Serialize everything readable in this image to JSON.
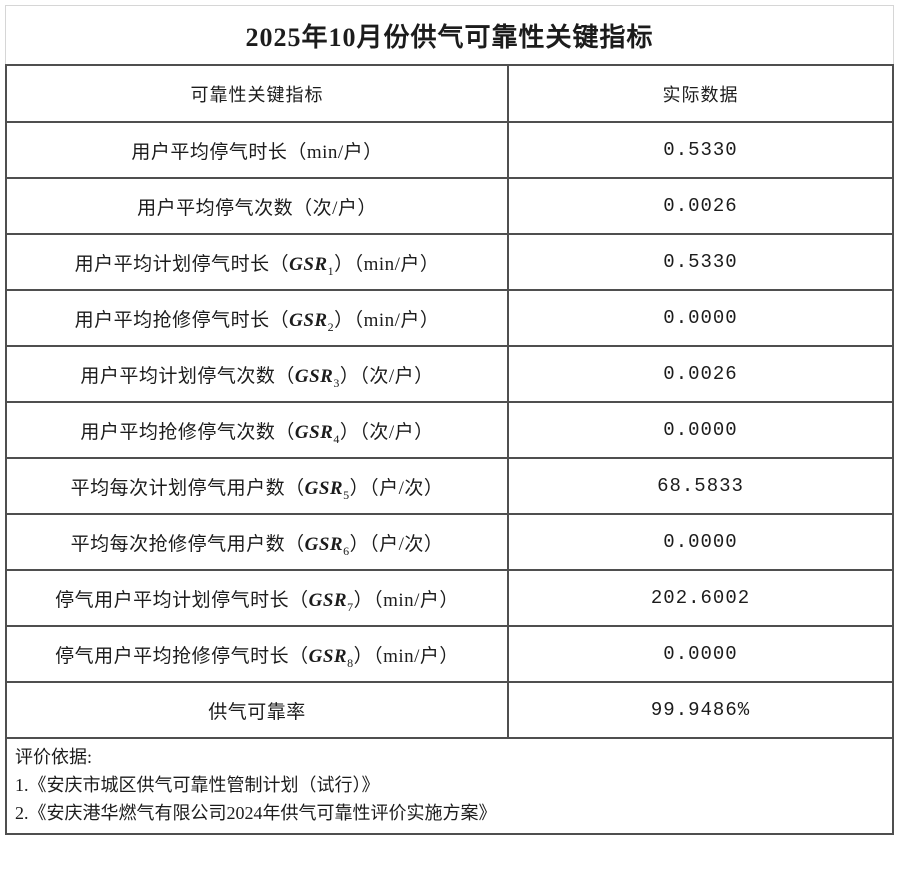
{
  "page": {
    "title": "2025年10月份供气可靠性关键指标"
  },
  "table": {
    "headers": {
      "indicator": "可靠性关键指标",
      "value": "实际数据"
    },
    "rows": [
      {
        "label_pre": "用户平均停气时长（min/户）",
        "gsr": "",
        "gsr_sub": "",
        "label_post": "",
        "value": "0.5330"
      },
      {
        "label_pre": "用户平均停气次数（次/户）",
        "gsr": "",
        "gsr_sub": "",
        "label_post": "",
        "value": "0.0026"
      },
      {
        "label_pre": "用户平均计划停气时长（",
        "gsr": "GSR",
        "gsr_sub": "1",
        "label_post": "）（min/户）",
        "value": "0.5330"
      },
      {
        "label_pre": "用户平均抢修停气时长（",
        "gsr": "GSR",
        "gsr_sub": "2",
        "label_post": "）（min/户）",
        "value": "0.0000"
      },
      {
        "label_pre": "用户平均计划停气次数（",
        "gsr": "GSR",
        "gsr_sub": "3",
        "label_post": "）（次/户）",
        "value": "0.0026"
      },
      {
        "label_pre": "用户平均抢修停气次数（",
        "gsr": "GSR",
        "gsr_sub": "4",
        "label_post": "）（次/户）",
        "value": "0.0000"
      },
      {
        "label_pre": "平均每次计划停气用户数（",
        "gsr": "GSR",
        "gsr_sub": "5",
        "label_post": "）（户/次）",
        "value": "68.5833"
      },
      {
        "label_pre": "平均每次抢修停气用户数（",
        "gsr": "GSR",
        "gsr_sub": "6",
        "label_post": "）（户/次）",
        "value": "0.0000"
      },
      {
        "label_pre": "停气用户平均计划停气时长（",
        "gsr": "GSR",
        "gsr_sub": "7",
        "label_post": "）（min/户）",
        "value": "202.6002"
      },
      {
        "label_pre": "停气用户平均抢修停气时长（",
        "gsr": "GSR",
        "gsr_sub": "8",
        "label_post": "）（min/户）",
        "value": "0.0000"
      },
      {
        "label_pre": "供气可靠率",
        "gsr": "",
        "gsr_sub": "",
        "label_post": "",
        "value": "99.9486%"
      }
    ]
  },
  "footer": {
    "heading": "评价依据:",
    "items": [
      "1.《安庆市城区供气可靠性管制计划（试行）》",
      "2.《安庆港华燃气有限公司2024年供气可靠性评价实施方案》"
    ]
  },
  "colors": {
    "border_dark": "#4f4f4f",
    "border_light": "#d6d6d6",
    "text": "#1c1c1c",
    "background": "#ffffff"
  }
}
